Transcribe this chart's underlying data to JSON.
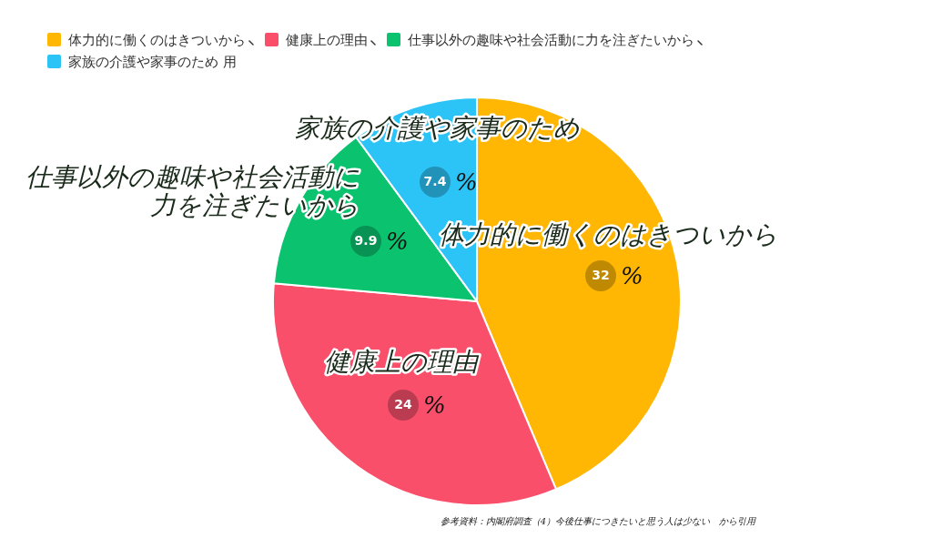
{
  "chart_data": {
    "type": "pie",
    "categories": [
      "体力的に働くのはきついから",
      "健康上の理由",
      "仕事以外の趣味や社会活動に力を注ぎたいから",
      "家族の介護や家事のため 用"
    ],
    "values": [
      32,
      24,
      9.9,
      7.4
    ],
    "colors": [
      "#ffb703",
      "#f94f6a",
      "#0bc26e",
      "#2cc4f6"
    ],
    "value_labels": [
      "32 %",
      "24 %",
      "9.9 %",
      "7.4 %"
    ],
    "legend": "top",
    "annotations": [
      "体力的に働くのはきついから",
      "健康上の理由",
      "仕事以外の趣味や社会活動に力を注ぎたいから",
      "家族の介護や家事のため",
      "参考資料：内閣府調査（4）今後仕事につきたいと思う人は少ない　から引用"
    ]
  }
}
